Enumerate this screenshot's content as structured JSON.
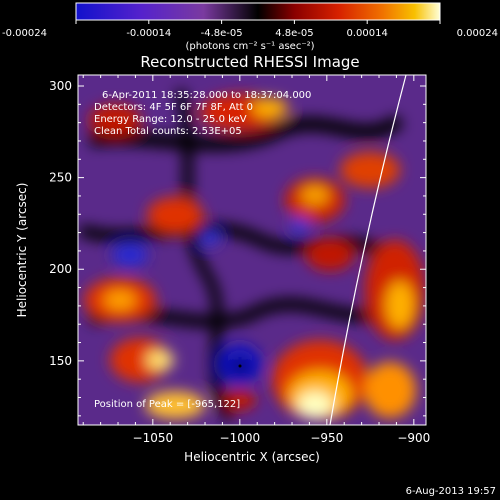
{
  "colorbar": {
    "ticks": [
      "-0.00024",
      "-0.00014",
      "-4.8e-05",
      "4.8e-05",
      "0.00014",
      "0.00024"
    ],
    "label": "(photons cm⁻² s⁻¹ asec⁻²)",
    "colors": [
      "#1111cc",
      "#5522cc",
      "#7a3aa0",
      "#000000",
      "#8a0000",
      "#d62000",
      "#f07000",
      "#f8c000",
      "#ffffd8"
    ]
  },
  "chart_data": {
    "type": "heatmap",
    "title": "Reconstructed RHESSI Image",
    "xlabel": "Heliocentric X (arcsec)",
    "ylabel": "Heliocentric Y (arcsec)",
    "xlim": [
      -1093,
      -893
    ],
    "ylim": [
      115,
      306
    ],
    "xticks": [
      -1050,
      -1000,
      -950,
      -900
    ],
    "xtick_labels": [
      "−1050",
      "−1000",
      "−950",
      "−900"
    ],
    "yticks": [
      150,
      200,
      250,
      300
    ],
    "ytick_labels": [
      "150",
      "200",
      "250",
      "300"
    ],
    "annotations": [
      "6-Apr-2011 18:35:28.000 to 18:37:04.000",
      "Detectors: 4F 5F 6F 7F 8F, Att 0",
      "Energy Range: 12.0 - 25.0 keV",
      "Clean    Total counts: 2.53E+05"
    ],
    "peak_label": "Position of Peak = [-965,122]",
    "peak": [
      -965,
      122
    ],
    "min_marker": [
      -996,
      147
    ],
    "grid": false
  },
  "footer": {
    "date": "6-Aug-2013 19:57"
  }
}
